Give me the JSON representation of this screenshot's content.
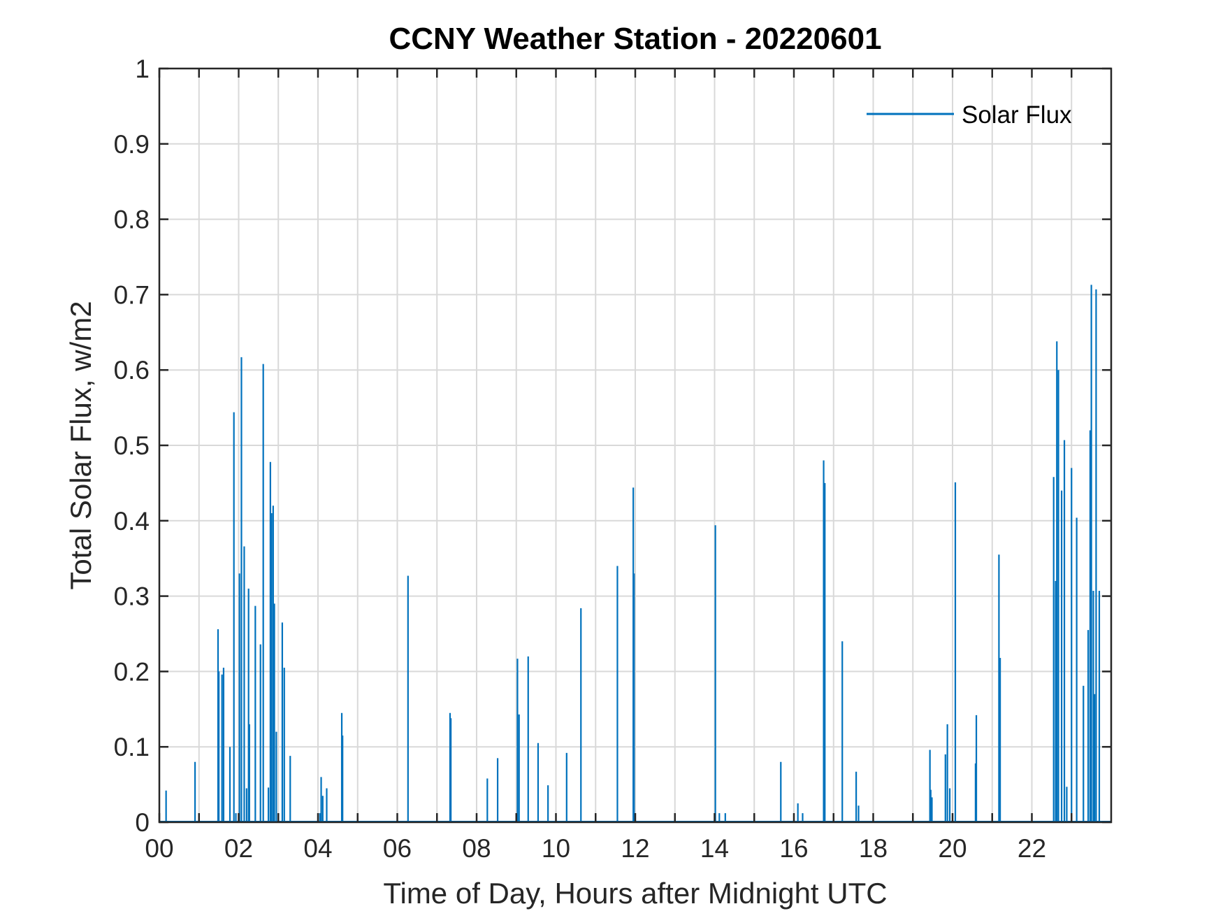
{
  "chart_data": {
    "type": "line",
    "title": "CCNY Weather Station - 20220601",
    "xlabel": "Time of Day, Hours after Midnight UTC",
    "ylabel": "Total Solar Flux, w/m2",
    "xlim": [
      0,
      24
    ],
    "ylim": [
      0,
      1
    ],
    "xticks": [
      0,
      2,
      4,
      6,
      8,
      10,
      12,
      14,
      16,
      18,
      20,
      22
    ],
    "xtick_labels": [
      "00",
      "02",
      "04",
      "06",
      "08",
      "10",
      "12",
      "14",
      "16",
      "18",
      "20",
      "22"
    ],
    "yticks": [
      0,
      0.1,
      0.2,
      0.3,
      0.4,
      0.5,
      0.6,
      0.7,
      0.8,
      0.9,
      1
    ],
    "ytick_labels": [
      "0",
      "0.1",
      "0.2",
      "0.3",
      "0.4",
      "0.5",
      "0.6",
      "0.7",
      "0.8",
      "0.9",
      "1"
    ],
    "x_minor_grid_step": 1,
    "grid": true,
    "legend": "top-right",
    "series": [
      {
        "name": "Solar Flux",
        "color": "#0072BD",
        "x": [
          0.17,
          0.9,
          1.48,
          1.5,
          1.58,
          1.62,
          1.78,
          1.88,
          1.93,
          2.02,
          2.07,
          2.14,
          2.2,
          2.25,
          2.27,
          2.42,
          2.55,
          2.62,
          2.75,
          2.8,
          2.83,
          2.87,
          2.9,
          2.95,
          3.1,
          3.15,
          3.3,
          4.05,
          4.08,
          4.12,
          4.22,
          4.6,
          4.62,
          6.27,
          7.33,
          7.35,
          8.27,
          8.53,
          9.03,
          9.07,
          9.3,
          9.55,
          9.8,
          10.27,
          10.63,
          11.55,
          11.95,
          11.97,
          14.0,
          14.02,
          14.12,
          14.27,
          15.67,
          16.1,
          16.22,
          16.75,
          16.78,
          17.22,
          17.57,
          17.63,
          19.43,
          19.45,
          19.48,
          19.82,
          19.87,
          19.93,
          20.07,
          20.58,
          20.6,
          21.17,
          21.2,
          22.55,
          22.6,
          22.63,
          22.67,
          22.75,
          22.82,
          22.88,
          23.0,
          23.13,
          23.3,
          23.42,
          23.47,
          23.5,
          23.55,
          23.58,
          23.62,
          23.7
        ],
        "y": [
          0.042,
          0.08,
          0.256,
          0.2,
          0.196,
          0.205,
          0.1,
          0.544,
          0.012,
          0.33,
          0.617,
          0.366,
          0.045,
          0.31,
          0.13,
          0.287,
          0.236,
          0.608,
          0.046,
          0.478,
          0.41,
          0.42,
          0.29,
          0.12,
          0.265,
          0.205,
          0.088,
          0.012,
          0.06,
          0.035,
          0.045,
          0.145,
          0.115,
          0.327,
          0.145,
          0.138,
          0.058,
          0.085,
          0.217,
          0.143,
          0.22,
          0.105,
          0.049,
          0.092,
          0.284,
          0.34,
          0.444,
          0.33,
          0.012,
          0.394,
          0.012,
          0.012,
          0.08,
          0.025,
          0.012,
          0.48,
          0.45,
          0.24,
          0.067,
          0.022,
          0.096,
          0.043,
          0.033,
          0.09,
          0.13,
          0.045,
          0.451,
          0.078,
          0.142,
          0.355,
          0.218,
          0.458,
          0.32,
          0.638,
          0.6,
          0.44,
          0.507,
          0.047,
          0.47,
          0.404,
          0.181,
          0.255,
          0.52,
          0.713,
          0.307,
          0.17,
          0.707,
          0.307
        ]
      }
    ]
  }
}
